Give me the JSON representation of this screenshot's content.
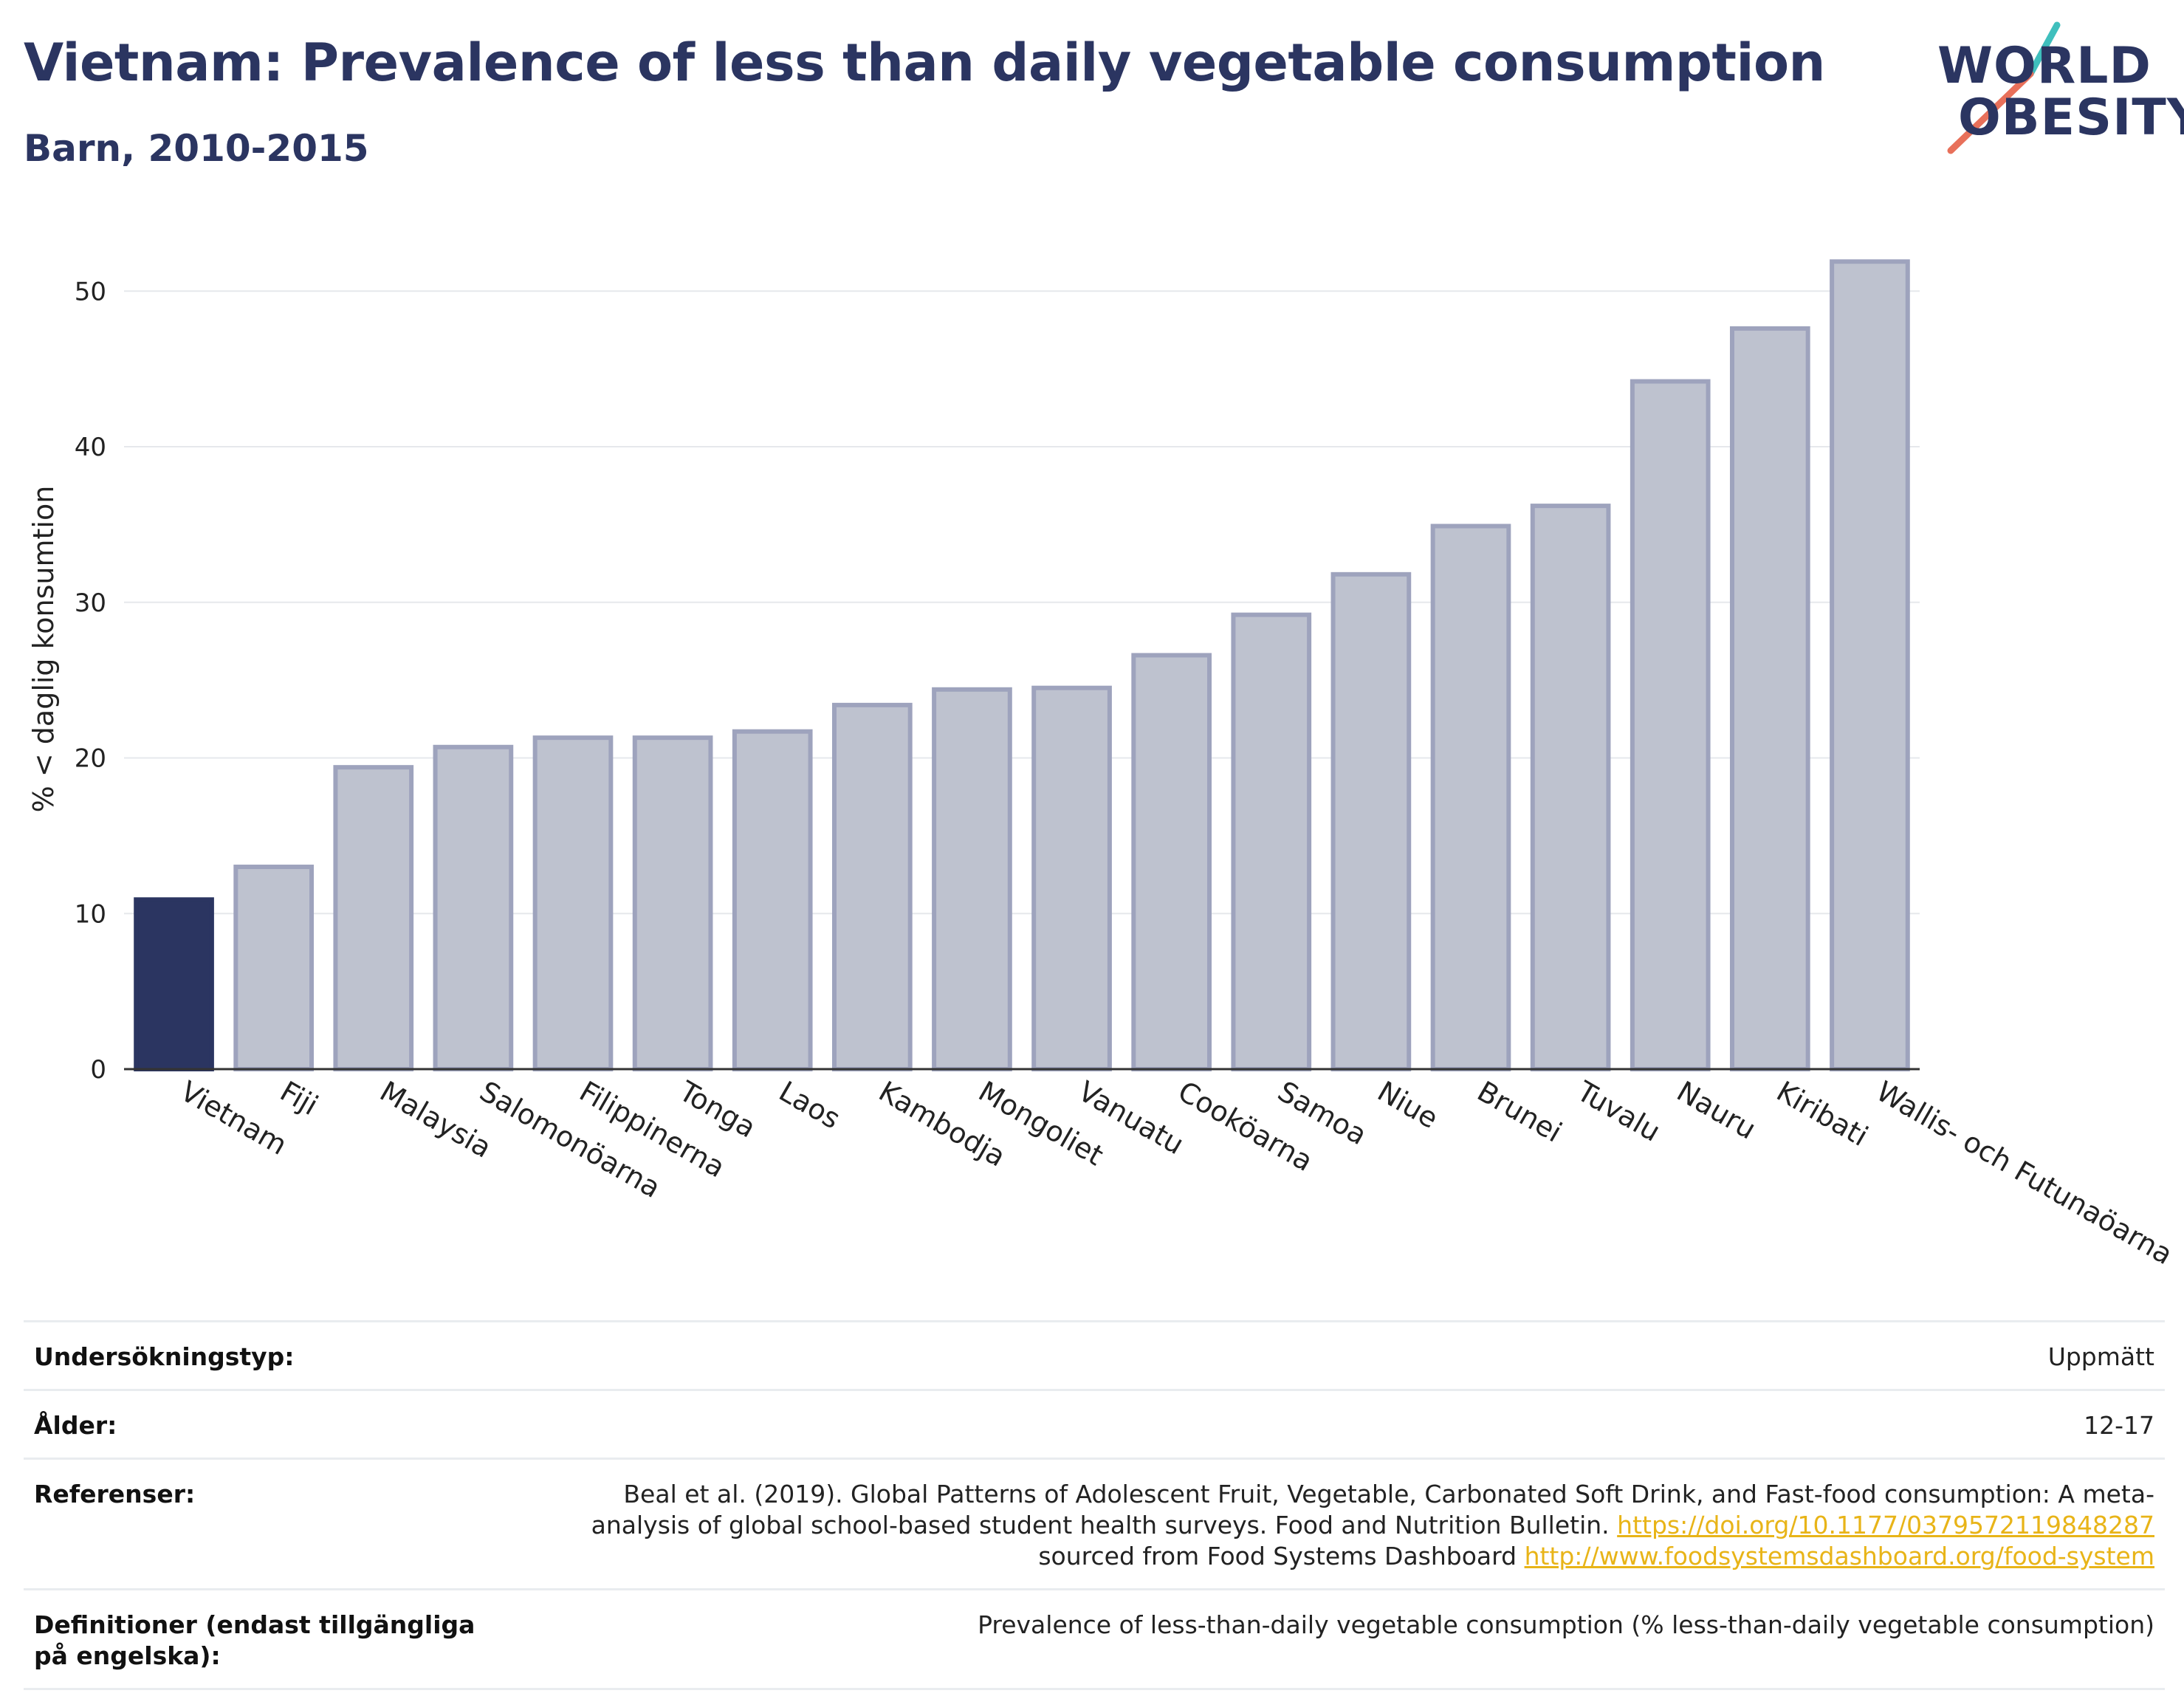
{
  "header": {
    "title": "Vietnam: Prevalence of less than daily vegetable consumption",
    "subtitle": "Barn, 2010-2015",
    "logo_line1": "WORLD",
    "logo_line2": "OBESITY"
  },
  "colors": {
    "highlight_bar": "#2b3561",
    "other_bar_fill": "#bec2cf",
    "other_bar_stroke": "#9ea3bd",
    "title": "#2b3561",
    "link": "#e8b418",
    "logo_teal": "#3fbfbd",
    "logo_coral": "#e8705a"
  },
  "chart_data": {
    "type": "bar",
    "title": "Vietnam: Prevalence of less than daily vegetable consumption",
    "subtitle": "Barn, 2010-2015",
    "ylabel": "% < daglig konsumtion",
    "xlabel": "",
    "ylim": [
      0,
      54
    ],
    "yticks": [
      0,
      10,
      20,
      30,
      40,
      50
    ],
    "grid": true,
    "highlight": "Vietnam",
    "categories": [
      "Vietnam",
      "Fiji",
      "Malaysia",
      "Salomonöarna",
      "Filippinerna",
      "Tonga",
      "Laos",
      "Kambodja",
      "Mongoliet",
      "Vanuatu",
      "Cooköarna",
      "Samoa",
      "Niue",
      "Brunei",
      "Tuvalu",
      "Nauru",
      "Kiribati",
      "Wallis- och Futunaöarna"
    ],
    "values": [
      10.9,
      13.0,
      19.4,
      20.7,
      21.3,
      21.3,
      21.7,
      23.4,
      24.4,
      24.5,
      26.6,
      29.2,
      31.8,
      34.9,
      36.2,
      44.2,
      47.6,
      51.9
    ]
  },
  "meta": {
    "survey_type_label": "Undersökningstyp:",
    "survey_type_value": "Uppmätt",
    "age_label": "Ålder:",
    "age_value": "12-17",
    "references_label": "Referenser:",
    "references_text1": "Beal et al. (2019). Global Patterns of Adolescent Fruit, Vegetable, Carbonated Soft Drink, and Fast-food consumption: A meta-analysis of global school-based student health surveys. Food and Nutrition Bulletin. ",
    "references_link1": "https://doi.org/10.1177/0379572119848287",
    "references_text2": " sourced from Food Systems Dashboard ",
    "references_link2": "http://www.foodsystemsdashboard.org/food-system",
    "definitions_label": "Definitioner (endast tillgängliga på engelska):",
    "definitions_value": "Prevalence of less-than-daily vegetable consumption (% less-than-daily vegetable consumption)"
  }
}
